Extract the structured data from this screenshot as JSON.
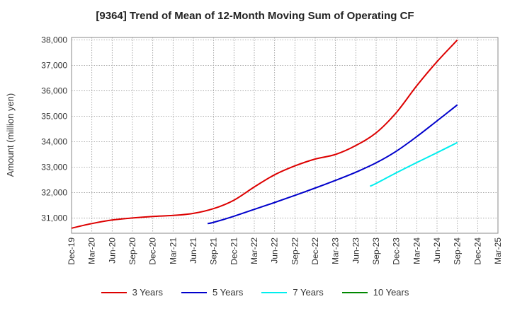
{
  "chart_data": {
    "type": "line",
    "title": "[9364]  Trend of Mean of 12-Month Moving Sum of Operating CF",
    "xlabel": "",
    "ylabel": "Amount (million yen)",
    "ylim": [
      30400,
      38100
    ],
    "y_ticks": [
      31000,
      32000,
      33000,
      34000,
      35000,
      36000,
      37000,
      38000
    ],
    "y_tick_labels": [
      "31,000",
      "32,000",
      "33,000",
      "34,000",
      "35,000",
      "36,000",
      "37,000",
      "38,000"
    ],
    "x_tick_labels": [
      "Dec-19",
      "Mar-20",
      "Jun-20",
      "Sep-20",
      "Dec-20",
      "Mar-21",
      "Jun-21",
      "Sep-21",
      "Dec-21",
      "Mar-22",
      "Jun-22",
      "Sep-22",
      "Dec-22",
      "Mar-23",
      "Jun-23",
      "Sep-23",
      "Dec-23",
      "Mar-24",
      "Jun-24",
      "Sep-24",
      "Dec-24",
      "Mar-25"
    ],
    "grid": true,
    "legend_position": "bottom",
    "series": [
      {
        "name": "3 Years",
        "color": "#dd0000",
        "points": [
          [
            0,
            30600
          ],
          [
            1,
            30780
          ],
          [
            2,
            30920
          ],
          [
            3,
            31000
          ],
          [
            4,
            31060
          ],
          [
            5,
            31100
          ],
          [
            6,
            31180
          ],
          [
            7,
            31370
          ],
          [
            8,
            31700
          ],
          [
            9,
            32220
          ],
          [
            10,
            32700
          ],
          [
            11,
            33050
          ],
          [
            12,
            33320
          ],
          [
            13,
            33500
          ],
          [
            14,
            33850
          ],
          [
            15,
            34350
          ],
          [
            16,
            35150
          ],
          [
            17,
            36200
          ],
          [
            18,
            37150
          ],
          [
            19,
            38000
          ]
        ]
      },
      {
        "name": "5 Years",
        "color": "#0000cc",
        "points": [
          [
            6.7,
            30780
          ],
          [
            7,
            30830
          ],
          [
            8,
            31070
          ],
          [
            9,
            31340
          ],
          [
            10,
            31610
          ],
          [
            11,
            31890
          ],
          [
            12,
            32180
          ],
          [
            13,
            32480
          ],
          [
            14,
            32800
          ],
          [
            15,
            33170
          ],
          [
            16,
            33630
          ],
          [
            17,
            34200
          ],
          [
            18,
            34820
          ],
          [
            19,
            35450
          ]
        ]
      },
      {
        "name": "7 Years",
        "color": "#00eeee",
        "points": [
          [
            14.7,
            32250
          ],
          [
            15,
            32360
          ],
          [
            16,
            32780
          ],
          [
            17,
            33180
          ],
          [
            18,
            33570
          ],
          [
            19,
            33970
          ]
        ]
      },
      {
        "name": "10 Years",
        "color": "#008800",
        "points": []
      }
    ]
  }
}
